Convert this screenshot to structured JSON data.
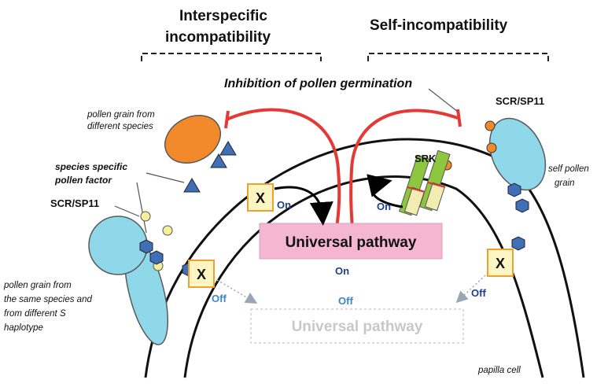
{
  "headings": {
    "interspecific": [
      "Interspecific",
      "incompatibility"
    ],
    "self": "Self-incompatibility"
  },
  "labels": {
    "inhibition": "Inhibition of pollen germination",
    "pollen_different_species": [
      "pollen grain from",
      "different species"
    ],
    "species_specific_factor": [
      "species specific",
      "pollen factor"
    ],
    "scr_left": "SCR/SP11",
    "scr_right": "SCR/SP11",
    "srk": "SRK",
    "self_pollen": [
      "self pollen",
      "grain"
    ],
    "pollen_same_species": [
      "pollen grain from",
      "the same species and",
      "from different S",
      "haplotype"
    ],
    "papilla": "papilla cell",
    "x_marker": "X",
    "on": "On",
    "off": "Off"
  },
  "pathway": {
    "active": "Universal pathway",
    "inactive": "Universal pathway"
  },
  "colors": {
    "inhibit_red": "#e53935",
    "pathway_pink": "#f4b6d2",
    "pollen_orange": "#f28a2b",
    "pollen_cyan": "#8fd8ea",
    "factor_blue": "#3f6fb5",
    "srk_green": "#8dc63f",
    "srk_yellow": "#f2ecb0",
    "x_box_fill": "#fdf6c3",
    "x_box_border": "#f0a030",
    "on_blue": "#1f3f8f",
    "off_blue": "#3b86c9"
  }
}
